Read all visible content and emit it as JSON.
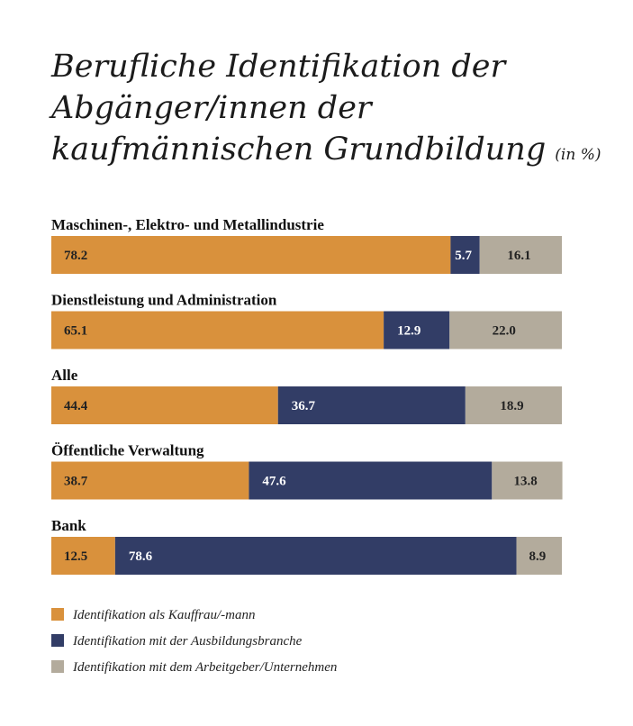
{
  "chart_data": {
    "type": "bar",
    "stacked": true,
    "orientation": "horizontal",
    "title_lines": [
      "Berufliche Identifikation der",
      "Abgänger/innen der",
      "kaufmännischen Grundbildung"
    ],
    "unit": "(in %)",
    "categories": [
      "Maschinen-, Elektro- und Metallindustrie",
      "Dienstleistung und Administration",
      "Alle",
      "Öffentliche Verwaltung",
      "Bank"
    ],
    "series": [
      {
        "name": "Identifikation als Kauffrau/-mann",
        "color": "#d9913c",
        "text_color": "#222222",
        "values": [
          78.2,
          65.1,
          44.4,
          38.7,
          12.5
        ],
        "labels": [
          "78.2",
          "65.1",
          "44.4",
          "38.7",
          "12.5"
        ]
      },
      {
        "name": "Identifikation mit der Ausbildungsbranche",
        "color": "#323d66",
        "text_color": "#ffffff",
        "values": [
          5.7,
          12.9,
          36.7,
          47.6,
          78.6
        ],
        "labels": [
          "5.7",
          "12.9",
          "36.7",
          "47.6",
          "78.6"
        ]
      },
      {
        "name": "Identifikation mit dem Arbeitgeber/Unternehmen",
        "color": "#b3ab9c",
        "text_color": "#222222",
        "values": [
          16.1,
          22.0,
          18.9,
          13.8,
          8.9
        ],
        "labels": [
          "16.1",
          "22.0",
          "18.9",
          "13.8",
          "8.9"
        ]
      }
    ],
    "xlim": [
      0,
      100
    ]
  }
}
